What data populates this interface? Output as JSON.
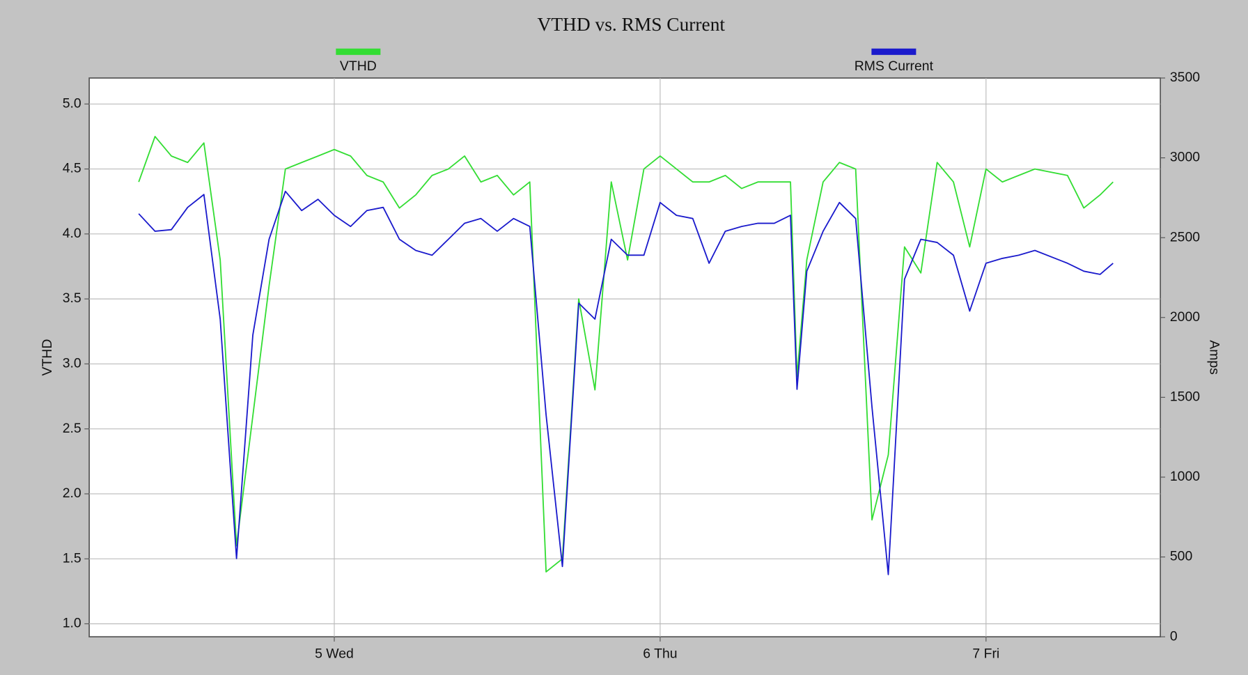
{
  "chart_data": {
    "type": "line",
    "title": "VTHD vs. RMS Current",
    "y_label": "VTHD",
    "y2_label": "Amps",
    "x": [
      4.4,
      4.45,
      4.5,
      4.55,
      4.6,
      4.65,
      4.7,
      4.75,
      4.8,
      4.85,
      4.9,
      4.95,
      5.0,
      5.05,
      5.1,
      5.15,
      5.2,
      5.25,
      5.3,
      5.35,
      5.4,
      5.45,
      5.5,
      5.55,
      5.6,
      5.65,
      5.7,
      5.75,
      5.8,
      5.85,
      5.9,
      5.95,
      6.0,
      6.05,
      6.1,
      6.15,
      6.2,
      6.25,
      6.3,
      6.35,
      6.4,
      6.42,
      6.45,
      6.5,
      6.55,
      6.6,
      6.65,
      6.7,
      6.75,
      6.8,
      6.85,
      6.9,
      6.95,
      7.0,
      7.05,
      7.1,
      7.15,
      7.25,
      7.3,
      7.35,
      7.39
    ],
    "xlim": [
      4.248,
      7.535
    ],
    "xticks": [
      {
        "value": 5,
        "label": "5 Wed"
      },
      {
        "value": 6,
        "label": "6 Thu"
      },
      {
        "value": 7,
        "label": "7 Fri"
      }
    ],
    "ylim": [
      0.9,
      5.2
    ],
    "yticks": [
      {
        "value": 1,
        "label": "1.0"
      },
      1.5,
      {
        "value": 2,
        "label": "2.0"
      },
      2.5,
      {
        "value": 3,
        "label": "3.0"
      },
      3.5,
      {
        "value": 4,
        "label": "4.0"
      },
      4.5,
      {
        "value": 5,
        "label": "5.0"
      }
    ],
    "y2lim": [
      0,
      3500
    ],
    "y2ticks": [
      0,
      500,
      1000,
      1500,
      2000,
      2500,
      3000,
      3500
    ],
    "grid": true,
    "series": [
      {
        "name": "VTHD",
        "color": "#33dd33",
        "values": [
          4.4,
          4.75,
          4.6,
          4.55,
          4.7,
          3.8,
          1.6,
          2.6,
          3.6,
          4.5,
          4.55,
          4.6,
          4.65,
          4.6,
          4.45,
          4.4,
          4.2,
          4.3,
          4.45,
          4.5,
          4.6,
          4.4,
          4.45,
          4.3,
          4.4,
          1.4,
          1.5,
          3.5,
          2.8,
          4.4,
          3.8,
          4.5,
          4.6,
          4.5,
          4.4,
          4.4,
          4.45,
          4.35,
          4.4,
          4.4,
          4.4,
          2.9,
          3.8,
          4.4,
          4.55,
          4.5,
          1.8,
          2.3,
          3.9,
          3.7,
          4.55,
          4.4,
          3.9,
          4.5,
          4.4,
          4.45,
          4.5,
          4.45,
          4.2,
          4.3,
          4.4
        ]
      },
      {
        "name": "RMS Current",
        "color": "#1a1acc",
        "axis": "y2",
        "values": [
          2650,
          2540,
          2550,
          2690,
          2770,
          1990,
          490,
          1890,
          2490,
          2790,
          2670,
          2740,
          2640,
          2570,
          2670,
          2690,
          2490,
          2420,
          2390,
          2490,
          2590,
          2620,
          2540,
          2620,
          2570,
          1390,
          440,
          2090,
          1990,
          2490,
          2390,
          2390,
          2720,
          2640,
          2620,
          2340,
          2540,
          2570,
          2590,
          2590,
          2640,
          1550,
          2290,
          2540,
          2720,
          2620,
          1440,
          390,
          2240,
          2490,
          2470,
          2390,
          2040,
          2340,
          2370,
          2390,
          2420,
          2340,
          2290,
          2270,
          2340
        ]
      }
    ]
  }
}
